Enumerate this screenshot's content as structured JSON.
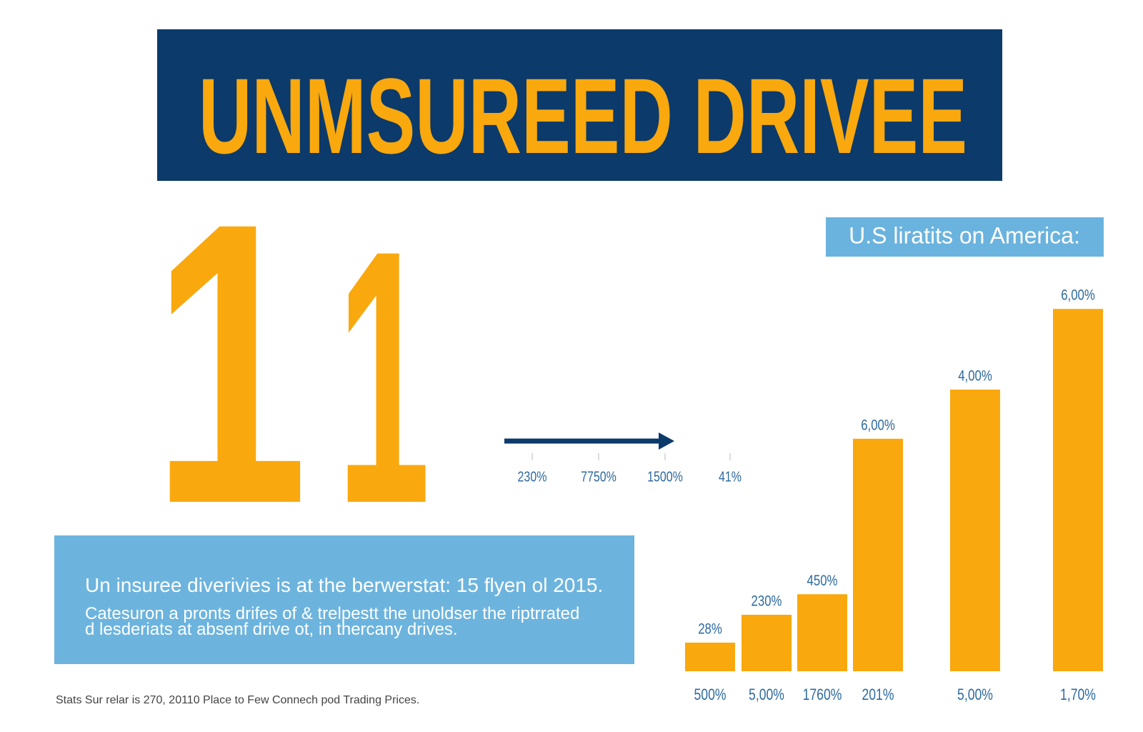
{
  "title": "UNMSUREED DRIVEE",
  "big_digits": [
    "1",
    "1"
  ],
  "arrow_labels": [
    "230%",
    "7750%",
    "1500%",
    "41%"
  ],
  "info_box": {
    "headline": "Un insuree diverivies is at the berwerstat: 15 flyen ol 2015.",
    "lines": [
      "Catesuron a pronts drifes of & trelpestt the unoldser the riptrrated",
      "d lesderiats at absenf drive ot, in thercany drives."
    ]
  },
  "footer": "Stats Sur relar is 270, 20110 Place to Few Connech pod Trading Prices.",
  "chart_data": {
    "type": "bar",
    "title": "U.S liratits on America:",
    "categories": [
      "500%",
      "5,00%",
      "1760%",
      "201%",
      "5,00%",
      "1,70%"
    ],
    "values": [
      39,
      77,
      105,
      317,
      384,
      494
    ],
    "bar_labels": [
      "28%",
      "230%",
      "450%",
      "6,00%",
      "4,00%",
      "6,00%"
    ],
    "color": "#f9a80e",
    "ylim": [
      0,
      500
    ]
  }
}
